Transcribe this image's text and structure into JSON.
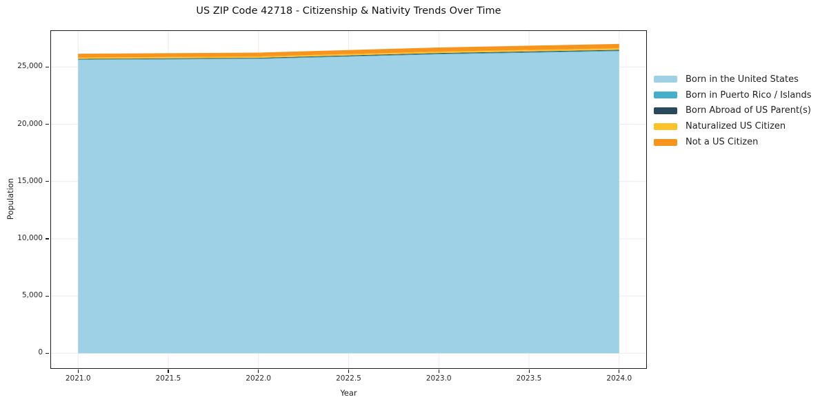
{
  "chart_data": {
    "type": "area",
    "stacked": true,
    "title": "US ZIP Code 42718 - Citizenship & Nativity Trends Over Time",
    "xlabel": "Year",
    "ylabel": "Population",
    "x": [
      2021,
      2022,
      2023,
      2024
    ],
    "series": [
      {
        "name": "Born in the United States",
        "color": "#9ed1e6",
        "values": [
          25620,
          25700,
          26100,
          26380
        ]
      },
      {
        "name": "Born in Puerto Rico / Islands",
        "color": "#45aec9",
        "values": [
          50,
          50,
          60,
          60
        ]
      },
      {
        "name": "Born Abroad of US Parent(s)",
        "color": "#29495c",
        "values": [
          40,
          50,
          60,
          60
        ]
      },
      {
        "name": "Naturalized US Citizen",
        "color": "#fcc22c",
        "values": [
          120,
          120,
          130,
          140
        ]
      },
      {
        "name": "Not a US Citizen",
        "color": "#f7941e",
        "values": [
          330,
          340,
          360,
          380
        ]
      }
    ],
    "xlim": [
      2020.85,
      2024.15
    ],
    "ylim": [
      -1300,
      28150
    ],
    "xticks": {
      "values": [
        2021.0,
        2021.5,
        2022.0,
        2022.5,
        2023.0,
        2023.5,
        2024.0
      ],
      "labels": [
        "2021.0",
        "2021.5",
        "2022.0",
        "2022.5",
        "2023.0",
        "2023.5",
        "2024.0"
      ]
    },
    "yticks": {
      "values": [
        0,
        5000,
        10000,
        15000,
        20000,
        25000
      ],
      "labels": [
        "0",
        "5,000",
        "10,000",
        "15,000",
        "20,000",
        "25,000"
      ]
    },
    "grid": true,
    "grid_color": "#ebebeb",
    "spine_color": "#1a1a1a",
    "legend_position": "right-outside"
  }
}
